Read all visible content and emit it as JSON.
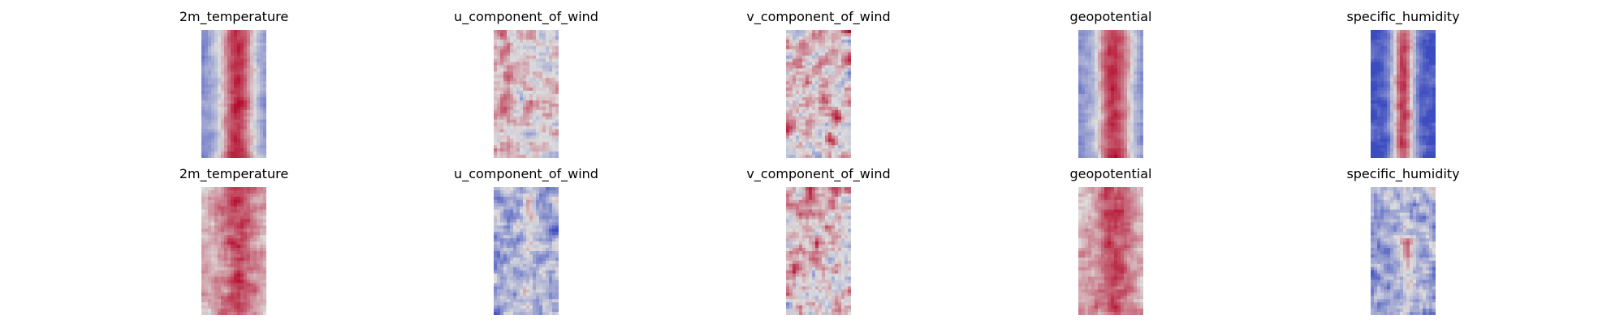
{
  "chart_data": {
    "type": "heatmap",
    "colormap": "coolwarm",
    "colors": {
      "cold": "#3b4cc0",
      "neutral": "#dddddd",
      "warm": "#b40426"
    },
    "grid": false,
    "axes_visible": false,
    "rows": [
      {
        "panels": [
          {
            "title": "2m_temperature",
            "pattern": "warm_core"
          },
          {
            "title": "u_component_of_wind",
            "pattern": "mixed_light"
          },
          {
            "title": "v_component_of_wind",
            "pattern": "mixed_warm"
          },
          {
            "title": "geopotential",
            "pattern": "warm_core"
          },
          {
            "title": "specific_humidity",
            "pattern": "cold_edges"
          }
        ]
      },
      {
        "panels": [
          {
            "title": "2m_temperature",
            "pattern": "warm_noisy"
          },
          {
            "title": "u_component_of_wind",
            "pattern": "cool_noisy"
          },
          {
            "title": "v_component_of_wind",
            "pattern": "mixed_warm"
          },
          {
            "title": "geopotential",
            "pattern": "warm_noisy"
          },
          {
            "title": "specific_humidity",
            "pattern": "cool_noisy"
          }
        ]
      }
    ]
  }
}
